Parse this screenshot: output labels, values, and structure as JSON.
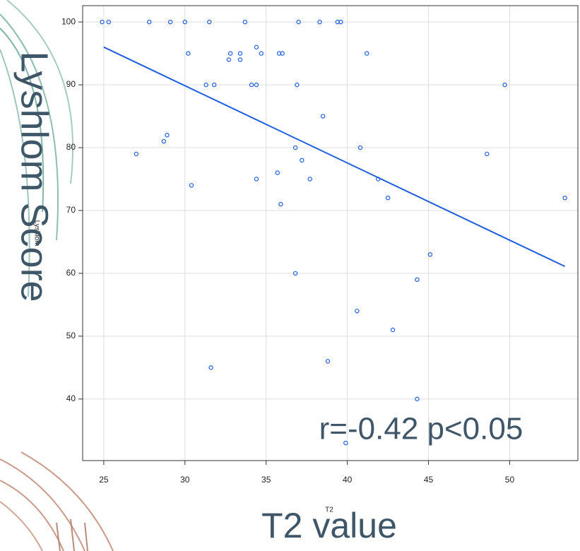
{
  "chart_data": {
    "type": "scatter",
    "xlabel": "T2",
    "ylabel": "Lyshlom",
    "overlay_xlabel": "T2 value",
    "overlay_ylabel": "Lyshlom Score",
    "annotation": "r=-0.42 p<0.05",
    "color": "#1f5fe0",
    "x": [
      24.9,
      25.3,
      27.8,
      29.1,
      30.0,
      31.5,
      33.7,
      37.0,
      38.3,
      39.4,
      39.6,
      30.2,
      32.8,
      33.4,
      34.7,
      35.8,
      36.0,
      41.2,
      34.4,
      32.7,
      33.4,
      31.3,
      31.8,
      34.1,
      34.4,
      36.9,
      49.7,
      38.5,
      28.9,
      28.7,
      27.0,
      36.8,
      40.8,
      48.6,
      37.2,
      35.7,
      34.4,
      37.7,
      41.9,
      30.4,
      42.5,
      53.4,
      35.9,
      45.1,
      36.8,
      44.3,
      40.6,
      42.8,
      38.8,
      31.6,
      44.3,
      39.9
    ],
    "y": [
      100,
      100,
      100,
      100,
      100,
      100,
      100,
      100,
      100,
      100,
      100,
      95,
      95,
      95,
      95,
      95,
      95,
      95,
      96,
      94,
      94,
      90,
      90,
      90,
      90,
      90,
      90,
      85,
      82,
      81,
      79,
      80,
      80,
      79,
      78,
      76,
      75,
      75,
      75,
      74,
      72,
      72,
      71,
      63,
      60,
      59,
      54,
      51,
      46,
      45,
      40,
      33
    ],
    "trend": {
      "x": [
        25,
        53.4
      ],
      "y": [
        96,
        61.1
      ],
      "color": "#1f5fe0"
    },
    "xlim": [
      23.7,
      54.2
    ],
    "ylim": [
      30.2,
      102.6
    ],
    "xticks": [
      25,
      30,
      35,
      40,
      45,
      50
    ],
    "yticks": [
      40,
      50,
      60,
      70,
      80,
      90,
      100
    ],
    "grid": true
  }
}
